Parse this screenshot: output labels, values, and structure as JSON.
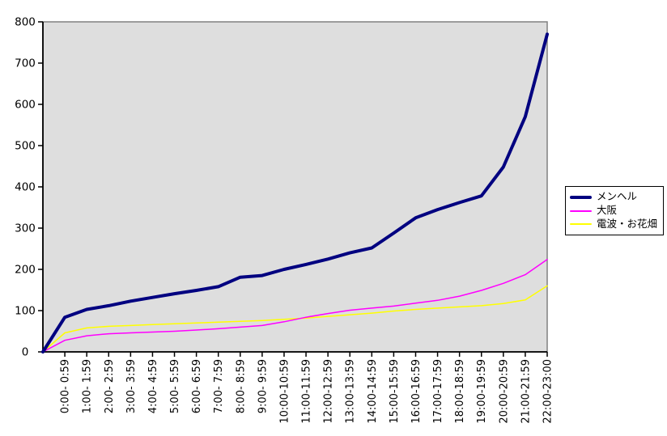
{
  "chart_data": {
    "type": "line",
    "title": "",
    "xlabel": "",
    "ylabel": "",
    "background_color": "#ffffff",
    "plot_area_color": "#dedede",
    "plot_border_color": "#808080",
    "axis_color": "#000000",
    "grid": false,
    "legend_position": "right",
    "y_axis": {
      "min": 0,
      "max": 800,
      "step": 100
    },
    "x_axis": {
      "note": "all series start at value 0 on the y-axis origin before the first labeled category; labels rotated 90deg",
      "labels": [
        "0:00- 0:59",
        "1:00- 1:59",
        "2:00- 2:59",
        "3:00- 3:59",
        "4:00- 4:59",
        "5:00- 5:59",
        "6:00- 6:59",
        "7:00- 7:59",
        "8:00- 8:59",
        "9:00- 9:59",
        "10:00-10:59",
        "11:00-11:59",
        "12:00-12:59",
        "13:00-13:59",
        "14:00-14:59",
        "15:00-15:59",
        "16:00-16:59",
        "17:00-17:59",
        "18:00-18:59",
        "19:00-19:59",
        "20:00-20:59",
        "21:00-21:59",
        "22:00-23:00"
      ]
    },
    "series": [
      {
        "name": "メンヘル",
        "color": "#000080",
        "line_width": 4,
        "values": [
          0,
          84,
          103,
          112,
          123,
          132,
          141,
          149,
          158,
          181,
          185,
          200,
          212,
          225,
          240,
          252,
          288,
          325,
          345,
          362,
          378,
          448,
          570,
          770
        ]
      },
      {
        "name": "大阪",
        "color": "#ff00ff",
        "line_width": 1.5,
        "values": [
          0,
          28,
          39,
          44,
          46,
          48,
          50,
          53,
          56,
          60,
          64,
          73,
          84,
          93,
          101,
          106,
          111,
          118,
          125,
          135,
          149,
          166,
          187,
          224
        ]
      },
      {
        "name": "電波・お花畑",
        "color": "#ffff00",
        "line_width": 1.5,
        "values": [
          0,
          46,
          58,
          62,
          64,
          66,
          68,
          70,
          72,
          74,
          76,
          79,
          82,
          86,
          90,
          94,
          99,
          103,
          106,
          109,
          112,
          117,
          126,
          160
        ]
      }
    ]
  }
}
